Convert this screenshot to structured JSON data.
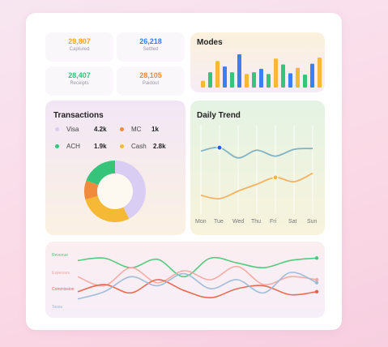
{
  "stats": [
    {
      "value": "29,807",
      "label": "Captured",
      "color": "#f5a623"
    },
    {
      "value": "26,218",
      "label": "Settled",
      "color": "#3b7ff5"
    },
    {
      "value": "28,407",
      "label": "Receipts",
      "color": "#35c47a"
    },
    {
      "value": "28,105",
      "label": "Paidout",
      "color": "#f08a3c"
    }
  ],
  "modes": {
    "title": "Modes",
    "bars": [
      {
        "value": 0.2,
        "color": "#f5b935"
      },
      {
        "value": 0.45,
        "color": "#35c47a"
      },
      {
        "value": 0.78,
        "color": "#f5b935"
      },
      {
        "value": 0.62,
        "color": "#3b7ff5"
      },
      {
        "value": 0.45,
        "color": "#35c47a"
      },
      {
        "value": 0.98,
        "color": "#3b7ff5"
      },
      {
        "value": 0.4,
        "color": "#f5b935"
      },
      {
        "value": 0.45,
        "color": "#35c47a"
      },
      {
        "value": 0.55,
        "color": "#3b7ff5"
      },
      {
        "value": 0.4,
        "color": "#35c47a"
      },
      {
        "value": 0.85,
        "color": "#f5b935"
      },
      {
        "value": 0.68,
        "color": "#35c47a"
      },
      {
        "value": 0.42,
        "color": "#3b7ff5"
      },
      {
        "value": 0.58,
        "color": "#f5b935"
      },
      {
        "value": 0.38,
        "color": "#35c47a"
      },
      {
        "value": 0.7,
        "color": "#3b7ff5"
      },
      {
        "value": 0.88,
        "color": "#f5b935"
      }
    ]
  },
  "transactions": {
    "title": "Transactions",
    "items": [
      {
        "name": "Visa",
        "value": "4.2k",
        "amount": 4.2,
        "color": "#d9cdf3"
      },
      {
        "name": "MC",
        "value": "1k",
        "amount": 1.0,
        "color": "#f08a3c"
      },
      {
        "name": "ACH",
        "value": "1.9k",
        "amount": 1.9,
        "color": "#35c47a"
      },
      {
        "name": "Cash",
        "value": "2.8k",
        "amount": 2.8,
        "color": "#f5b935"
      }
    ]
  },
  "daily_trend": {
    "title": "Daily Trend",
    "days": [
      "Mon",
      "Tue",
      "Wed",
      "Thu",
      "Fri",
      "Sat",
      "Sun"
    ],
    "series": [
      {
        "color": "#7fb3c4",
        "values": [
          0.74,
          0.78,
          0.66,
          0.75,
          0.68,
          0.76,
          0.77
        ],
        "marker_index": 1,
        "marker_color": "#1e5eea"
      },
      {
        "color": "#f5b260",
        "values": [
          0.22,
          0.18,
          0.27,
          0.35,
          0.43,
          0.38,
          0.48
        ],
        "marker_index": 4,
        "marker_color": "#f5b935"
      }
    ]
  },
  "bottom_chart": {
    "labels": [
      "Revenue",
      "Expenses",
      "Commission",
      "Taxes"
    ],
    "series": [
      {
        "name": "Revenue",
        "color": "#4cc77a",
        "values": [
          0.82,
          0.86,
          0.7,
          0.84,
          0.55,
          0.86,
          0.78,
          0.7,
          0.82,
          0.86
        ]
      },
      {
        "name": "Expenses",
        "color": "#f2a9a0",
        "values": [
          0.55,
          0.4,
          0.7,
          0.45,
          0.65,
          0.5,
          0.72,
          0.42,
          0.55,
          0.5
        ]
      },
      {
        "name": "Commission",
        "color": "#e8634a",
        "values": [
          0.3,
          0.42,
          0.28,
          0.5,
          0.32,
          0.2,
          0.35,
          0.4,
          0.25,
          0.3
        ]
      },
      {
        "name": "Taxes",
        "color": "#9cb9d6",
        "values": [
          0.18,
          0.3,
          0.55,
          0.4,
          0.6,
          0.35,
          0.5,
          0.28,
          0.62,
          0.45
        ]
      }
    ]
  }
}
